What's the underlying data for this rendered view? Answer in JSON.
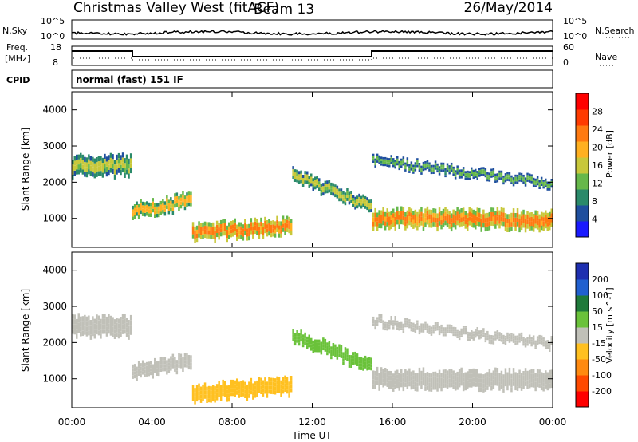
{
  "header": {
    "title": "Christmas Valley West (fitACF)",
    "beam": "Beam 13",
    "date": "26/May/2014"
  },
  "aux_panels": {
    "nsky_label": "N.Sky",
    "nsearch_label": "N.Search",
    "nsky_ticks": [
      "10^5",
      "10^0"
    ],
    "nsearch_ticks": [
      "10^5",
      "10^0"
    ],
    "freq_label_1": "Freq.",
    "freq_label_2": "[MHz]",
    "freq_ticks": [
      "18",
      "8"
    ],
    "nave_label": "Nave",
    "nave_ticks": [
      "60",
      "0"
    ],
    "cpid_label": "CPID",
    "cpid_text": "normal (fast) 151 IF"
  },
  "colors": {
    "power_scale": [
      "#1a1aff",
      "#1f4f9e",
      "#2a8a6a",
      "#66b84a",
      "#c8c83a",
      "#ffb020",
      "#ff7a10",
      "#ff3b00",
      "#ff0000"
    ],
    "velocity_scale": [
      "#1e2fb0",
      "#2060d0",
      "#1f7a3a",
      "#6ac23a",
      "#c0c0b8",
      "#ffc020",
      "#ff8a10",
      "#ff4a00",
      "#ff0000"
    ]
  },
  "chart_data": [
    {
      "type": "heatmap",
      "name": "power",
      "xlabel": "",
      "ylabel": "Slant Range [km]",
      "xlim": [
        0,
        24
      ],
      "ylim": [
        200,
        4500
      ],
      "yticks": [
        1000,
        2000,
        3000,
        4000
      ],
      "colorbar": {
        "label": "Power [dB]",
        "ticks": [
          4,
          8,
          12,
          16,
          20,
          24,
          28
        ]
      },
      "bands": [
        {
          "x": [
            0,
            3
          ],
          "y": [
            2450,
            2450
          ],
          "width": 550,
          "value": 20
        },
        {
          "x": [
            3,
            6
          ],
          "y": [
            1200,
            1500
          ],
          "width": 400,
          "value": 24
        },
        {
          "x": [
            6,
            11
          ],
          "y": [
            600,
            800
          ],
          "width": 450,
          "value": 28
        },
        {
          "x": [
            11,
            15
          ],
          "y": [
            2200,
            1300
          ],
          "width": 350,
          "value": 20
        },
        {
          "x": [
            15,
            24
          ],
          "y": [
            1000,
            950
          ],
          "width": 500,
          "value": 28
        },
        {
          "x": [
            15,
            24
          ],
          "y": [
            2600,
            1950
          ],
          "width": 250,
          "value": 16
        }
      ]
    },
    {
      "type": "heatmap",
      "name": "velocity",
      "xlabel": "Time UT",
      "ylabel": "Slant Range [km]",
      "xlim": [
        0,
        24
      ],
      "ylim": [
        200,
        4500
      ],
      "xticks": [
        "00:00",
        "04:00",
        "08:00",
        "12:00",
        "16:00",
        "20:00",
        "00:00"
      ],
      "yticks": [
        1000,
        2000,
        3000,
        4000
      ],
      "colorbar": {
        "label": "Velocity [m s^-1]",
        "ticks": [
          200,
          100,
          50,
          15,
          -15,
          -50,
          -100,
          -200
        ]
      },
      "bands": [
        {
          "x": [
            0,
            3
          ],
          "y": [
            2450,
            2450
          ],
          "width": 550,
          "value": 0
        },
        {
          "x": [
            3,
            6
          ],
          "y": [
            1200,
            1500
          ],
          "width": 400,
          "value": 0
        },
        {
          "x": [
            6,
            11
          ],
          "y": [
            600,
            800
          ],
          "width": 450,
          "value": -50
        },
        {
          "x": [
            11,
            15
          ],
          "y": [
            2200,
            1300
          ],
          "width": 350,
          "value": 50
        },
        {
          "x": [
            15,
            24
          ],
          "y": [
            1000,
            950
          ],
          "width": 500,
          "value": 0
        },
        {
          "x": [
            15,
            24
          ],
          "y": [
            2600,
            1950
          ],
          "width": 250,
          "value": 0
        }
      ]
    }
  ]
}
